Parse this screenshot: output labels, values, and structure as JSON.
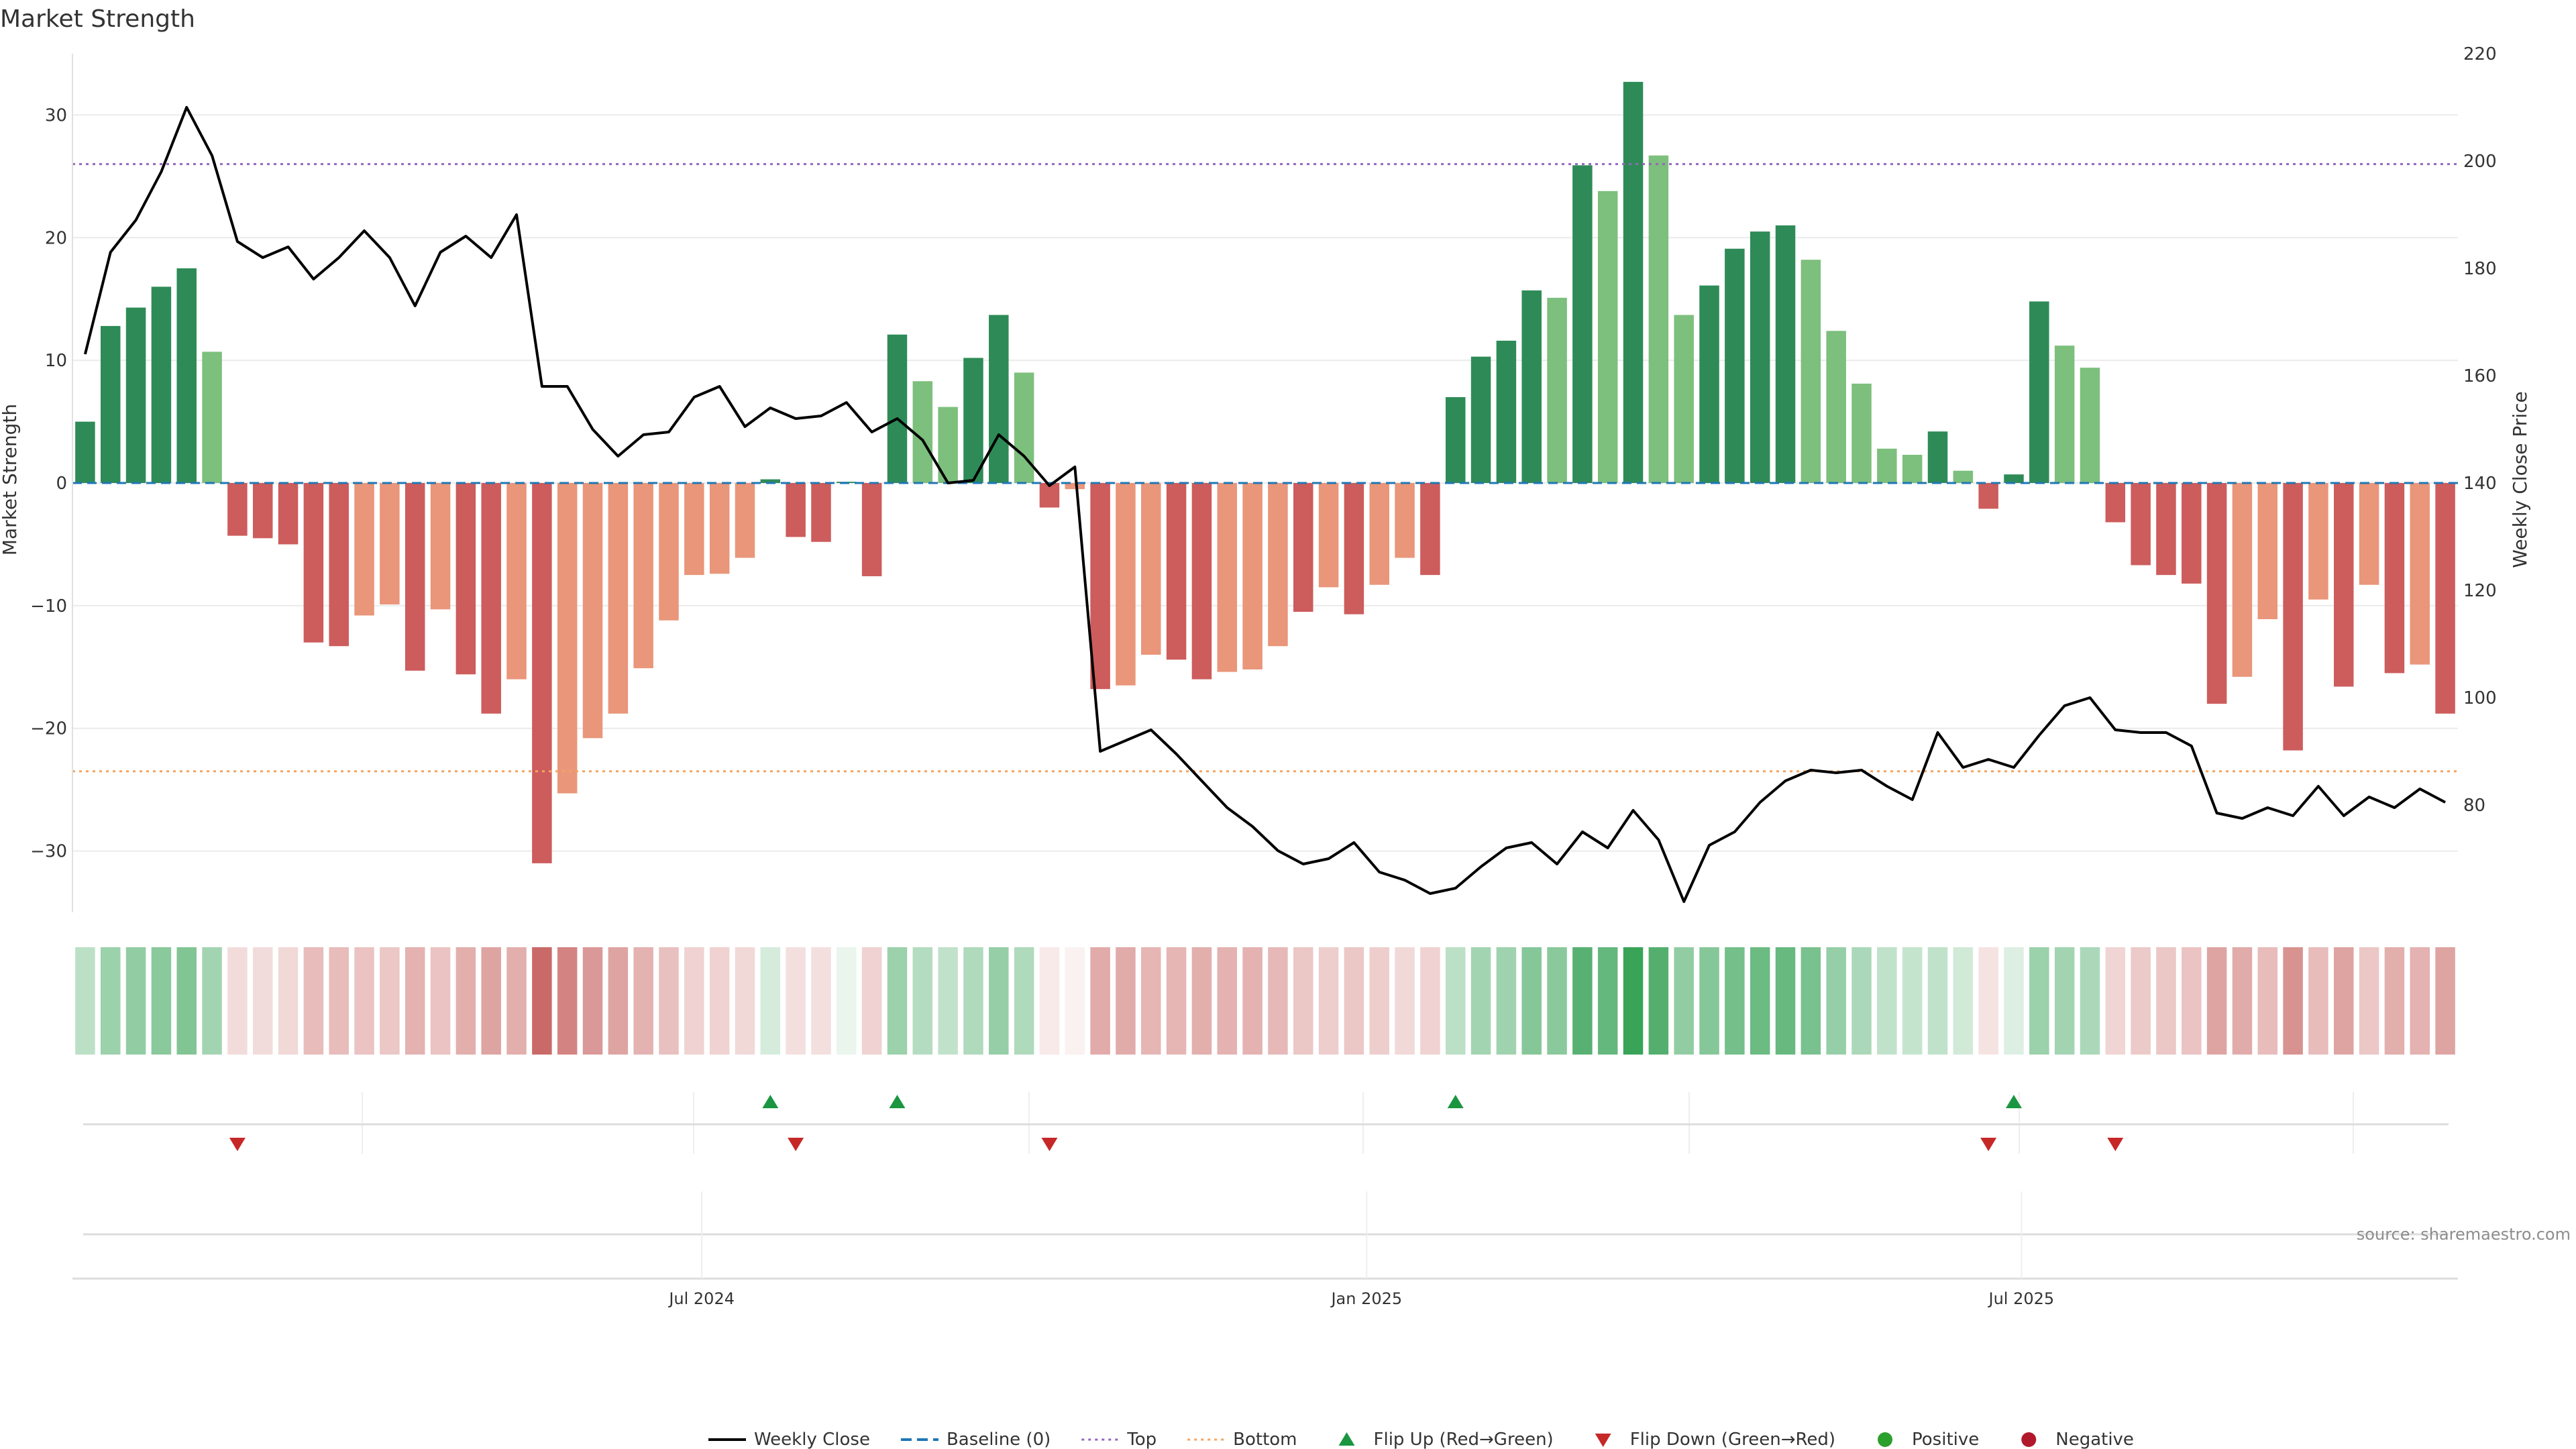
{
  "title": "Market Strength",
  "source": "source: sharemaestro.com",
  "colors": {
    "pos_strong": "#2e8b57",
    "pos_weak": "#7dbf7d",
    "neg_strong": "#cd5c5c",
    "neg_weak": "#e9967a",
    "close_line": "#000000",
    "baseline": "#1f77b4",
    "top": "#9467bd",
    "bottom": "#f4a460",
    "flip_up": "#1a9641",
    "flip_down": "#c62828",
    "positive": "#2ca02c",
    "negative": "#b2182b",
    "source": "#8c8c8c"
  },
  "legend": [
    {
      "label": "Weekly Close",
      "kind": "line",
      "icon": "solid-line"
    },
    {
      "label": "Baseline (0)",
      "kind": "dash",
      "icon": "dashed-line"
    },
    {
      "label": "Top",
      "kind": "dot-purple",
      "icon": "dotted-line"
    },
    {
      "label": "Bottom",
      "kind": "dot-orange",
      "icon": "dotted-line"
    },
    {
      "label": "Flip Up (Red→Green)",
      "kind": "tri-up",
      "icon": "triangle-up-icon"
    },
    {
      "label": "Flip Down (Green→Red)",
      "kind": "tri-down",
      "icon": "triangle-down-icon"
    },
    {
      "label": "Positive",
      "kind": "dot-green",
      "icon": "circle-icon"
    },
    {
      "label": "Negative",
      "kind": "dot-red",
      "icon": "circle-icon"
    }
  ],
  "chart_data": {
    "type": "bar",
    "ylabel": "Market Strength",
    "y2label": "Weekly Close Price",
    "ylim": [
      -35,
      35
    ],
    "y2lim": [
      60,
      220
    ],
    "yticks": [
      -30,
      -20,
      -10,
      0,
      10,
      20,
      30
    ],
    "y2ticks": [
      80,
      100,
      120,
      140,
      160,
      180,
      200,
      220
    ],
    "top_level": 26,
    "bottom_level": -23.5,
    "baseline": 0,
    "x_labels": [
      {
        "label": "Jul 2024",
        "week": 24.3
      },
      {
        "label": "Jan 2025",
        "week": 50.5
      },
      {
        "label": "Jul 2025",
        "week": 76.3
      }
    ],
    "series": [
      {
        "name": "Market Strength",
        "type": "bar",
        "values": [
          5,
          12.8,
          14.3,
          16,
          17.5,
          10.7,
          -4.3,
          -4.5,
          -5,
          -13,
          -13.3,
          -10.8,
          -9.9,
          -15.3,
          -10.3,
          -15.6,
          -18.8,
          -16,
          -31,
          -25.3,
          -20.8,
          -18.8,
          -15.1,
          -11.2,
          -7.5,
          -7.4,
          -6.1,
          0.3,
          -4.4,
          -4.8,
          0.1,
          -7.6,
          12.1,
          8.3,
          6.2,
          10.2,
          13.7,
          9,
          -2,
          -0.5,
          -16.8,
          -16.5,
          -14,
          -14.4,
          -16,
          -15.4,
          -15.2,
          -13.3,
          -10.5,
          -8.5,
          -10.7,
          -8.3,
          -6.1,
          -7.5,
          7,
          10.3,
          11.6,
          15.7,
          15.1,
          25.9,
          23.8,
          32.7,
          26.7,
          13.7,
          16.1,
          19.1,
          20.5,
          21,
          18.2,
          12.4,
          8.1,
          2.8,
          2.3,
          4.2,
          1,
          -2.1,
          0.7,
          14.8,
          11.2,
          9.4,
          -3.2,
          -6.7,
          -7.5,
          -8.2,
          -18,
          -15.8,
          -11.1,
          -21.8,
          -9.5,
          -16.6,
          -8.3,
          -15.5,
          -14.8,
          -18.8
        ],
        "shade": [
          "strong",
          "strong",
          "strong",
          "strong",
          "strong",
          "weak",
          "strong",
          "strong",
          "strong",
          "strong",
          "strong",
          "weak",
          "weak",
          "strong",
          "weak",
          "strong",
          "strong",
          "weak",
          "strong",
          "weak",
          "weak",
          "weak",
          "weak",
          "weak",
          "weak",
          "weak",
          "weak",
          "strong",
          "strong",
          "strong",
          "strong",
          "strong",
          "strong",
          "weak",
          "weak",
          "strong",
          "strong",
          "weak",
          "strong",
          "weak",
          "strong",
          "weak",
          "weak",
          "strong",
          "strong",
          "weak",
          "weak",
          "weak",
          "strong",
          "weak",
          "strong",
          "weak",
          "weak",
          "strong",
          "strong",
          "strong",
          "strong",
          "strong",
          "weak",
          "strong",
          "weak",
          "strong",
          "weak",
          "weak",
          "strong",
          "strong",
          "strong",
          "strong",
          "weak",
          "weak",
          "weak",
          "weak",
          "weak",
          "strong",
          "weak",
          "strong",
          "strong",
          "strong",
          "weak",
          "weak",
          "strong",
          "strong",
          "strong",
          "strong",
          "strong",
          "weak",
          "weak",
          "strong",
          "weak",
          "strong",
          "weak",
          "strong",
          "weak",
          "strong"
        ]
      },
      {
        "name": "Weekly Close",
        "type": "line",
        "values": [
          164,
          183,
          189,
          198,
          210,
          201,
          185,
          182,
          184,
          178,
          182,
          187,
          182,
          173,
          183,
          186,
          182,
          190,
          158,
          158,
          150,
          145,
          149,
          149.5,
          156,
          158,
          150.5,
          154,
          152,
          152.5,
          155,
          149.5,
          152,
          148,
          140,
          140.5,
          149,
          145,
          139.5,
          143,
          90,
          92,
          94,
          89.5,
          84.5,
          79.5,
          76,
          71.5,
          69,
          70,
          73,
          67.5,
          66,
          63.5,
          64.5,
          68.5,
          72,
          73,
          69,
          75,
          72,
          79,
          73.5,
          62,
          72.5,
          75,
          80.5,
          84.5,
          86.5,
          86,
          86.5,
          83.5,
          81,
          93.5,
          87,
          88.5,
          87,
          93,
          98.5,
          100,
          94,
          93.5,
          93.5,
          91,
          78.5,
          77.5,
          79.5,
          78,
          83.5,
          78,
          81.5,
          79.5,
          83,
          80.5
        ]
      },
      {
        "name": "Flip Up (Red→Green)",
        "type": "marker",
        "weeks": [
          27,
          32,
          54,
          76
        ]
      },
      {
        "name": "Flip Down (Green→Red)",
        "type": "marker",
        "weeks": [
          6,
          28,
          38,
          75,
          80
        ]
      }
    ],
    "heat_strip": [
      0.32,
      0.48,
      0.52,
      0.56,
      0.6,
      0.44,
      0.2,
      0.2,
      0.22,
      0.38,
      0.38,
      0.34,
      0.32,
      0.44,
      0.34,
      0.46,
      0.52,
      0.46,
      0.85,
      0.7,
      0.58,
      0.52,
      0.44,
      0.36,
      0.26,
      0.26,
      0.22,
      0.2,
      0.18,
      0.18,
      0.1,
      0.26,
      0.48,
      0.36,
      0.3,
      0.38,
      0.5,
      0.38,
      0.12,
      0.08,
      0.48,
      0.48,
      0.42,
      0.42,
      0.46,
      0.44,
      0.44,
      0.4,
      0.32,
      0.28,
      0.32,
      0.28,
      0.22,
      0.26,
      0.32,
      0.44,
      0.46,
      0.58,
      0.56,
      0.8,
      0.74,
      0.95,
      0.82,
      0.52,
      0.58,
      0.66,
      0.7,
      0.72,
      0.64,
      0.5,
      0.4,
      0.3,
      0.28,
      0.3,
      0.22,
      0.16,
      0.16,
      0.48,
      0.44,
      0.4,
      0.24,
      0.3,
      0.32,
      0.34,
      0.52,
      0.48,
      0.38,
      0.62,
      0.38,
      0.52,
      0.32,
      0.46,
      0.44,
      0.52
    ],
    "grid": true,
    "legend_position": "bottom-center"
  }
}
